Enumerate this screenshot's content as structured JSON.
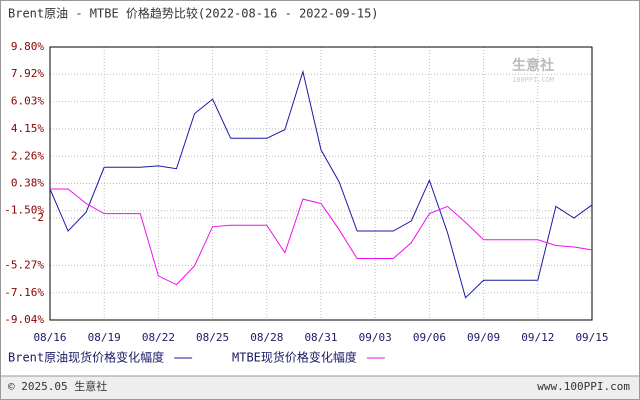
{
  "chart_data": {
    "type": "line",
    "title": "Brent原油 - MTBE 价格趋势比较(2022-08-16 - 2022-09-15)",
    "categories": [
      "08/16",
      null,
      null,
      "08/19",
      null,
      null,
      "08/22",
      null,
      null,
      "08/25",
      null,
      null,
      "08/28",
      null,
      null,
      "08/31",
      null,
      null,
      "09/03",
      null,
      null,
      "09/06",
      null,
      null,
      "09/09",
      null,
      null,
      "09/12",
      null,
      null,
      "09/15"
    ],
    "series": [
      {
        "name": "Brent原油现货价格变化幅度",
        "color": "#1a1aa6",
        "values": [
          0,
          -2.9,
          -1.6,
          1.5,
          1.5,
          1.5,
          1.6,
          1.4,
          5.2,
          6.2,
          3.5,
          3.5,
          3.5,
          4.1,
          8.1,
          2.7,
          0.5,
          -2.9,
          -2.9,
          -2.9,
          -2.2,
          0.6,
          -3.0,
          -7.5,
          -6.3,
          -6.3,
          -6.3,
          -6.3,
          -1.2,
          -2.0,
          -1.1
        ]
      },
      {
        "name": "MTBE现货价格变化幅度",
        "color": "#ee11ee",
        "values": [
          0,
          0,
          -1.0,
          -1.7,
          -1.7,
          -1.7,
          -6.0,
          -6.6,
          -5.3,
          -2.6,
          -2.5,
          -2.5,
          -2.5,
          -4.4,
          -0.7,
          -1.0,
          -2.8,
          -4.8,
          -4.8,
          -4.8,
          -3.7,
          -1.7,
          -1.2,
          -2.3,
          -3.5,
          -3.5,
          -3.5,
          -3.5,
          -3.9,
          -4.0,
          -4.2
        ]
      }
    ],
    "ylim": [
      -9.04,
      9.8
    ],
    "yticks": [
      {
        "value": 9.8,
        "label": "9.80%"
      },
      {
        "value": 7.92,
        "label": "7.92%"
      },
      {
        "value": 6.03,
        "label": "6.03%"
      },
      {
        "value": 4.15,
        "label": "4.15%"
      },
      {
        "value": 2.26,
        "label": "2.26%"
      },
      {
        "value": 0.38,
        "label": "0.38%"
      },
      {
        "value": -1.5,
        "label": "-1.50%"
      },
      -2,
      {
        "value": -5.27,
        "label": "-5.27%"
      },
      {
        "value": -7.16,
        "label": "-7.16%"
      },
      {
        "value": -9.04,
        "label": "-9.04%"
      }
    ],
    "grid": true,
    "watermark": {
      "name": "生意社",
      "site": "100PPI.COM"
    },
    "footer": {
      "left": "© 2025.05 生意社",
      "right": "www.100PPI.com"
    }
  }
}
